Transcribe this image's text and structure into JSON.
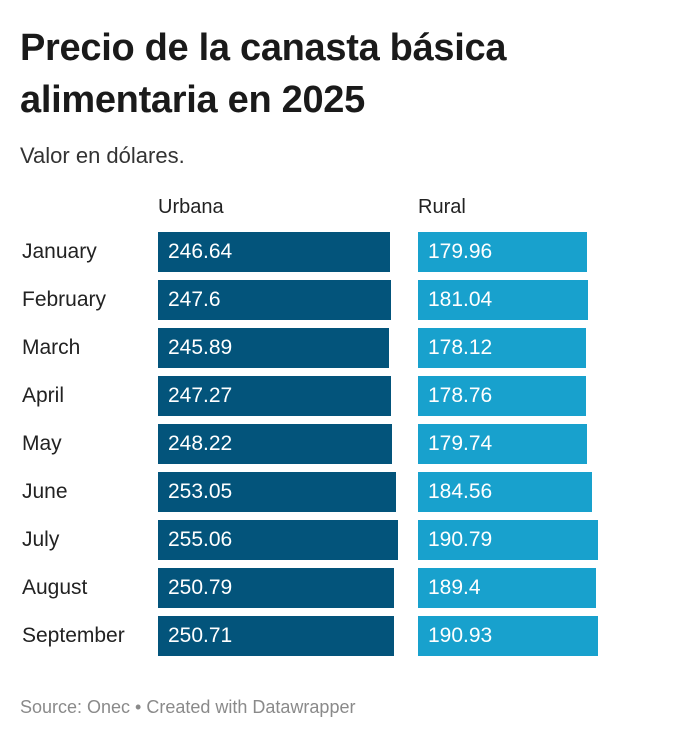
{
  "title": "Precio de la canasta básica alimentaria en 2025",
  "subtitle": "Valor en dólares.",
  "footer": "Source: Onec • Created with Datawrapper",
  "colors": {
    "urbana": "#03547b",
    "rural": "#18a1cd"
  },
  "chart_data": {
    "type": "bar",
    "title": "Precio de la canasta básica alimentaria en 2025",
    "subtitle": "Valor en dólares.",
    "categories": [
      "January",
      "February",
      "March",
      "April",
      "May",
      "June",
      "July",
      "August",
      "September"
    ],
    "series": [
      {
        "name": "Urbana",
        "values": [
          246.64,
          247.6,
          245.89,
          247.27,
          248.22,
          253.05,
          255.06,
          250.79,
          250.71
        ]
      },
      {
        "name": "Rural",
        "values": [
          179.96,
          181.04,
          178.12,
          178.76,
          179.74,
          184.56,
          190.79,
          189.4,
          190.93
        ]
      }
    ],
    "value_labels": {
      "Urbana": [
        "246.64",
        "247.6",
        "245.89",
        "247.27",
        "248.22",
        "253.05",
        "255.06",
        "250.79",
        "250.71"
      ],
      "Rural": [
        "179.96",
        "181.04",
        "178.12",
        "178.76",
        "179.74",
        "184.56",
        "190.79",
        "189.4",
        "190.93"
      ]
    },
    "xlabel": "",
    "ylabel": "",
    "grid": false
  }
}
